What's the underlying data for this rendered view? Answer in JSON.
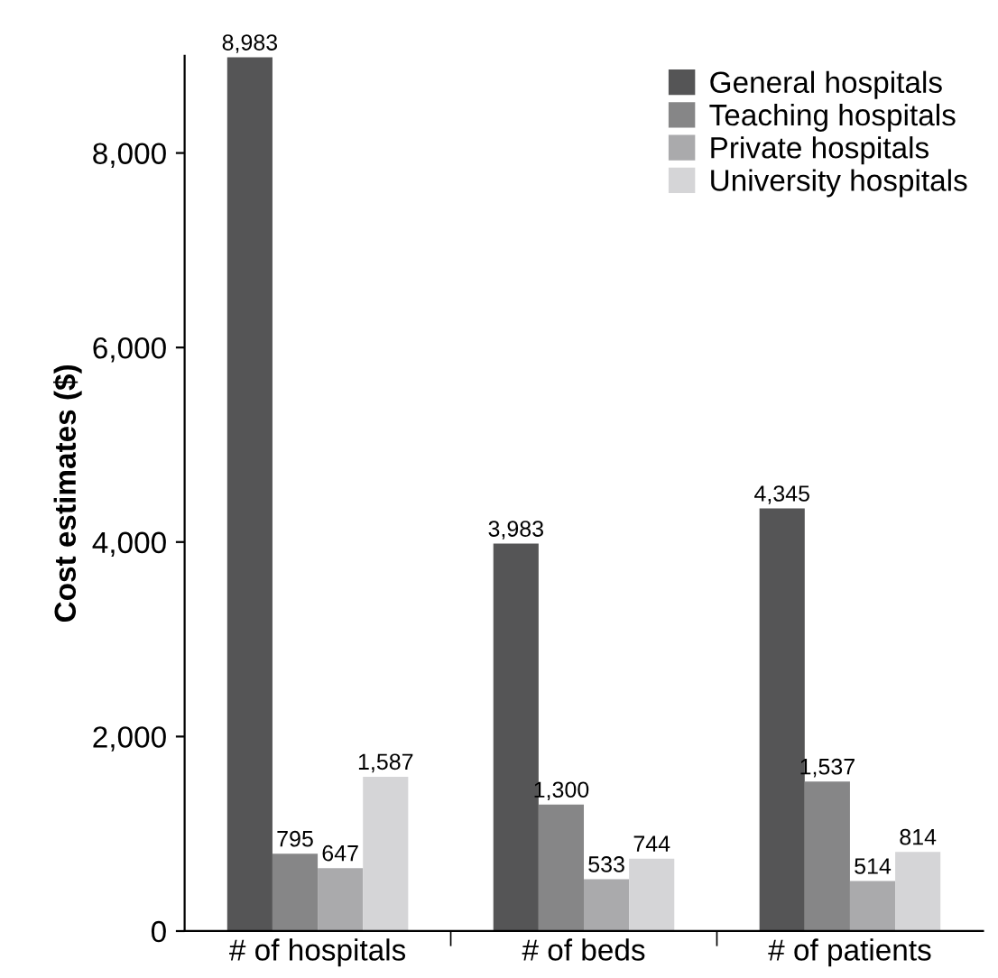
{
  "chart_data": {
    "type": "bar",
    "ylabel": "Cost estimates ($)",
    "categories": [
      "# of hospitals",
      "# of beds",
      "# of patients"
    ],
    "series": [
      {
        "name": "General hospitals",
        "color": "#555556",
        "values": [
          8983,
          3983,
          4345
        ],
        "value_labels": [
          "8,983",
          "3,983",
          "4,345"
        ]
      },
      {
        "name": "Teaching hospitals",
        "color": "#868687",
        "values": [
          795,
          1300,
          1537
        ],
        "value_labels": [
          "795",
          "1,300",
          "1,537"
        ]
      },
      {
        "name": "Private hospitals",
        "color": "#aaaaac",
        "values": [
          647,
          533,
          514
        ],
        "value_labels": [
          "647",
          "533",
          "514"
        ]
      },
      {
        "name": "University hospitals",
        "color": "#d5d5d7",
        "values": [
          1587,
          744,
          814
        ],
        "value_labels": [
          "1,587",
          "744",
          "814"
        ]
      }
    ],
    "ylim": [
      0,
      9000
    ],
    "yticks": [
      0,
      {
        "value": 2000,
        "label": "2,000"
      },
      {
        "value": 4000,
        "label": "4,000"
      },
      {
        "value": 6000,
        "label": "6,000"
      },
      {
        "value": 8000,
        "label": "8,000"
      }
    ],
    "grid": false,
    "legend": "top right"
  }
}
